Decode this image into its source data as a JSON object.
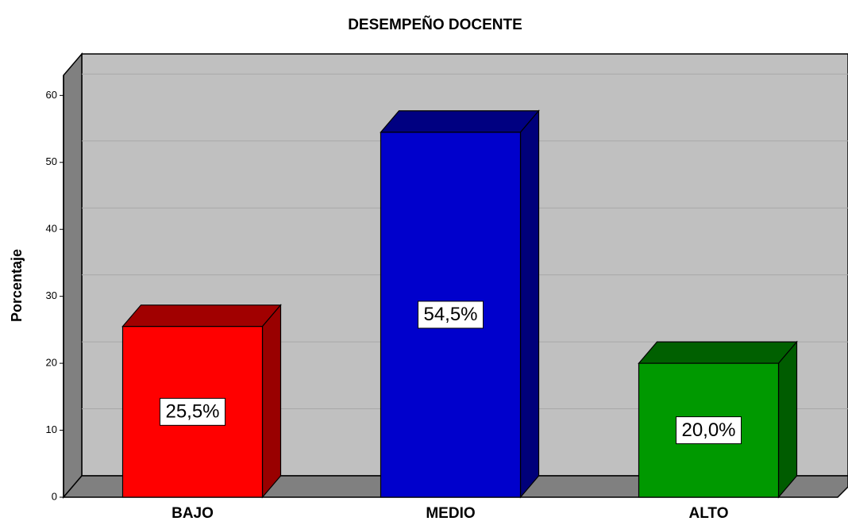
{
  "chart_data": {
    "type": "bar3d",
    "title": "DESEMPEÑO DOCENTE",
    "y_label": "Porcentaje",
    "categories": [
      "BAJO",
      "MEDIO",
      "ALTO"
    ],
    "values": [
      25.5,
      54.5,
      20.0
    ],
    "value_labels": [
      "25,5%",
      "54,5%",
      "20,0%"
    ],
    "colors": [
      "#ff0000",
      "#0000cc",
      "#009900"
    ],
    "ylim": [
      0,
      63
    ],
    "yticks": [
      0,
      10,
      20,
      30,
      40,
      50,
      60
    ],
    "grid": true
  }
}
